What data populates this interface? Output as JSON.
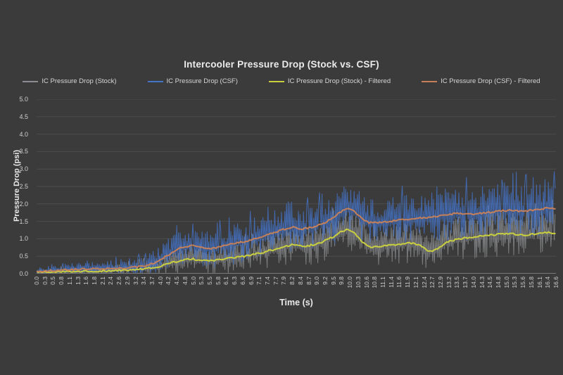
{
  "window": {
    "background": "#3B3B3B",
    "text_color": "#d6d6d6",
    "gridline_color": "#4d4d4d",
    "axis_line_color": "#7a7a7a"
  },
  "chart_data": {
    "type": "line",
    "title": "Intercooler Pressure Drop (Stock vs. CSF)",
    "xlabel": "Time (s)",
    "ylabel": "Pressure Drop (psi)",
    "xlim": [
      0,
      16.6
    ],
    "ylim": [
      0,
      5.0
    ],
    "grid": true,
    "legend_position": "top",
    "y_tick_labels": [
      "0.0",
      "0.5",
      "1.0",
      "1.5",
      "2.0",
      "2.5",
      "3.0",
      "3.5",
      "4.0",
      "4.5",
      "5.0"
    ],
    "x_tick_labels": [
      "0.0",
      "0.3",
      "0.5",
      "0.8",
      "1.1",
      "1.3",
      "1.6",
      "1.8",
      "2.1",
      "2.4",
      "2.6",
      "2.9",
      "3.2",
      "3.4",
      "3.7",
      "4.0",
      "4.2",
      "4.5",
      "4.8",
      "5.0",
      "5.3",
      "5.5",
      "5.8",
      "6.1",
      "6.3",
      "6.6",
      "6.9",
      "7.1",
      "7.4",
      "7.7",
      "7.9",
      "8.2",
      "8.4",
      "8.7",
      "9.0",
      "9.2",
      "9.5",
      "9.8",
      "10.0",
      "10.3",
      "10.6",
      "10.8",
      "11.1",
      "11.4",
      "11.6",
      "11.9",
      "12.1",
      "12.4",
      "12.7",
      "12.9",
      "13.2",
      "13.5",
      "13.7",
      "14.0",
      "14.3",
      "14.5",
      "14.8",
      "15.0",
      "15.3",
      "15.6",
      "15.8",
      "16.1",
      "16.4",
      "16.6"
    ],
    "series": [
      {
        "name": "IC Pressure Drop (Stock)",
        "color": "#8B8D90",
        "style": "raw-noisy",
        "source": "stock",
        "opacity": 0.8,
        "width": 1
      },
      {
        "name": "IC Pressure Drop (CSF)",
        "color": "#4472C4",
        "style": "raw-noisy",
        "source": "csf",
        "opacity": 0.85,
        "width": 1
      },
      {
        "name": "IC Pressure Drop (Stock) - Filtered",
        "color": "#C9CF3F",
        "style": "filtered-line",
        "source": "stock",
        "opacity": 1,
        "width": 2
      },
      {
        "name": "IC Pressure Drop (CSF) - Filtered",
        "color": "#C4805A",
        "style": "filtered-line",
        "source": "csf",
        "opacity": 1,
        "width": 2
      }
    ],
    "control_points": {
      "x": [
        0.0,
        0.5,
        1.0,
        1.5,
        2.0,
        2.5,
        3.0,
        3.5,
        3.8,
        4.1,
        4.4,
        4.7,
        5.0,
        5.3,
        5.6,
        6.0,
        6.4,
        6.8,
        7.2,
        7.6,
        7.9,
        8.2,
        8.5,
        8.8,
        9.1,
        9.4,
        9.7,
        9.9,
        10.1,
        10.35,
        10.6,
        10.9,
        11.3,
        11.7,
        12.0,
        12.3,
        12.55,
        12.8,
        13.1,
        13.5,
        13.9,
        14.3,
        14.7,
        15.1,
        15.5,
        15.9,
        16.3,
        16.6
      ],
      "csf_filtered": [
        0.07,
        0.09,
        0.11,
        0.13,
        0.14,
        0.15,
        0.17,
        0.22,
        0.32,
        0.48,
        0.65,
        0.78,
        0.8,
        0.74,
        0.72,
        0.8,
        0.88,
        0.95,
        1.05,
        1.18,
        1.27,
        1.33,
        1.28,
        1.33,
        1.42,
        1.55,
        1.75,
        1.88,
        1.85,
        1.62,
        1.47,
        1.45,
        1.5,
        1.55,
        1.57,
        1.6,
        1.62,
        1.65,
        1.7,
        1.73,
        1.7,
        1.74,
        1.78,
        1.82,
        1.78,
        1.82,
        1.88,
        1.85
      ],
      "stock_filtered": [
        0.04,
        0.05,
        0.06,
        0.07,
        0.08,
        0.09,
        0.11,
        0.14,
        0.18,
        0.26,
        0.33,
        0.4,
        0.42,
        0.38,
        0.37,
        0.42,
        0.47,
        0.52,
        0.6,
        0.7,
        0.78,
        0.83,
        0.78,
        0.82,
        0.9,
        1.02,
        1.18,
        1.26,
        1.22,
        0.95,
        0.78,
        0.76,
        0.82,
        0.86,
        0.88,
        0.8,
        0.62,
        0.72,
        0.9,
        1.0,
        1.05,
        1.08,
        1.12,
        1.15,
        1.1,
        1.13,
        1.18,
        1.15
      ],
      "csf_noise_amplitude": [
        0.12,
        0.15,
        0.18,
        0.2,
        0.22,
        0.25,
        0.28,
        0.32,
        0.38,
        0.45,
        0.5,
        0.55,
        0.55,
        0.55,
        0.55,
        0.58,
        0.6,
        0.62,
        0.65,
        0.7,
        0.75,
        0.8,
        0.75,
        0.75,
        0.78,
        0.8,
        0.8,
        0.8,
        0.8,
        0.75,
        0.72,
        0.7,
        0.7,
        0.72,
        0.72,
        0.72,
        0.72,
        0.72,
        0.75,
        0.78,
        0.75,
        0.78,
        0.8,
        0.82,
        0.8,
        0.82,
        0.85,
        0.82
      ],
      "stock_noise_amplitude": [
        0.08,
        0.1,
        0.12,
        0.14,
        0.16,
        0.18,
        0.2,
        0.24,
        0.28,
        0.32,
        0.36,
        0.4,
        0.4,
        0.4,
        0.4,
        0.42,
        0.44,
        0.46,
        0.48,
        0.52,
        0.56,
        0.6,
        0.56,
        0.56,
        0.58,
        0.6,
        0.62,
        0.62,
        0.62,
        0.6,
        0.58,
        0.56,
        0.56,
        0.58,
        0.58,
        0.58,
        0.58,
        0.58,
        0.6,
        0.64,
        0.62,
        0.64,
        0.66,
        0.68,
        0.66,
        0.68,
        0.72,
        0.7
      ]
    },
    "noise_seed": 42
  }
}
